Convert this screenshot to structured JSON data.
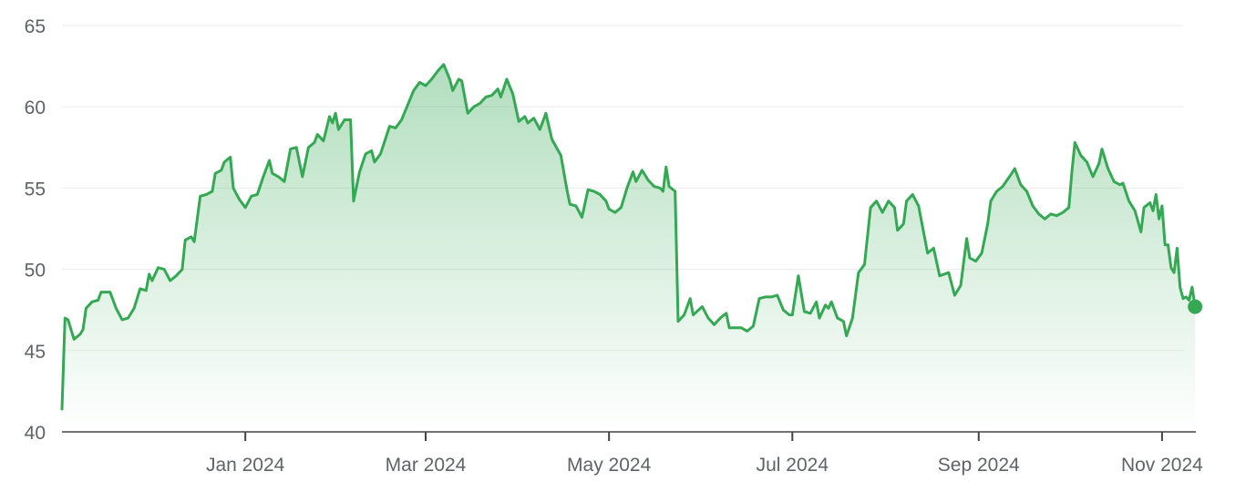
{
  "chart_data": {
    "type": "area",
    "title": "",
    "xlabel": "",
    "ylabel": "",
    "ylim": [
      40,
      65
    ],
    "xlim": [
      "2023-11-01",
      "2024-11-08"
    ],
    "y_ticks": [
      40,
      45,
      50,
      55,
      60,
      65
    ],
    "x_ticks": [
      {
        "label": "Jan 2024",
        "date": "2024-01-01"
      },
      {
        "label": "Mar 2024",
        "date": "2024-03-01"
      },
      {
        "label": "May 2024",
        "date": "2024-05-01"
      },
      {
        "label": "Jul 2024",
        "date": "2024-07-01"
      },
      {
        "label": "Sep 2024",
        "date": "2024-09-01"
      },
      {
        "label": "Nov 2024",
        "date": "2024-11-01"
      }
    ],
    "grid": true,
    "colors": {
      "line": "#34a853",
      "fill_top": "#34a853",
      "marker": "#34a853"
    },
    "series": [
      {
        "points": [
          [
            "2023-11-01",
            41.4
          ],
          [
            "2023-11-02",
            47.0
          ],
          [
            "2023-11-03",
            46.9
          ],
          [
            "2023-11-05",
            45.7
          ],
          [
            "2023-11-07",
            46.0
          ],
          [
            "2023-11-08",
            46.3
          ],
          [
            "2023-11-09",
            47.6
          ],
          [
            "2023-11-11",
            48.0
          ],
          [
            "2023-11-13",
            48.1
          ],
          [
            "2023-11-14",
            48.6
          ],
          [
            "2023-11-17",
            48.6
          ],
          [
            "2023-11-19",
            47.6
          ],
          [
            "2023-11-21",
            46.9
          ],
          [
            "2023-11-23",
            47.0
          ],
          [
            "2023-11-25",
            47.6
          ],
          [
            "2023-11-27",
            48.8
          ],
          [
            "2023-11-29",
            48.7
          ],
          [
            "2023-11-30",
            49.7
          ],
          [
            "2023-12-01",
            49.3
          ],
          [
            "2023-12-03",
            50.1
          ],
          [
            "2023-12-05",
            50.0
          ],
          [
            "2023-12-07",
            49.3
          ],
          [
            "2023-12-09",
            49.6
          ],
          [
            "2023-12-11",
            50.0
          ],
          [
            "2023-12-12",
            51.8
          ],
          [
            "2023-12-14",
            52.0
          ],
          [
            "2023-12-15",
            51.7
          ],
          [
            "2023-12-17",
            54.5
          ],
          [
            "2023-12-19",
            54.6
          ],
          [
            "2023-12-21",
            54.8
          ],
          [
            "2023-12-22",
            55.9
          ],
          [
            "2023-12-24",
            56.1
          ],
          [
            "2023-12-25",
            56.6
          ],
          [
            "2023-12-27",
            56.9
          ],
          [
            "2023-12-28",
            55.0
          ],
          [
            "2023-12-30",
            54.3
          ],
          [
            "2024-01-01",
            53.8
          ],
          [
            "2024-01-03",
            54.5
          ],
          [
            "2024-01-05",
            54.6
          ],
          [
            "2024-01-07",
            55.7
          ],
          [
            "2024-01-09",
            56.7
          ],
          [
            "2024-01-10",
            55.9
          ],
          [
            "2024-01-12",
            55.7
          ],
          [
            "2024-01-14",
            55.4
          ],
          [
            "2024-01-16",
            57.4
          ],
          [
            "2024-01-18",
            57.5
          ],
          [
            "2024-01-20",
            55.7
          ],
          [
            "2024-01-22",
            57.5
          ],
          [
            "2024-01-24",
            57.8
          ],
          [
            "2024-01-25",
            58.3
          ],
          [
            "2024-01-27",
            57.9
          ],
          [
            "2024-01-29",
            59.4
          ],
          [
            "2024-01-30",
            59.0
          ],
          [
            "2024-01-31",
            59.6
          ],
          [
            "2024-02-01",
            58.6
          ],
          [
            "2024-02-03",
            59.2
          ],
          [
            "2024-02-05",
            59.2
          ],
          [
            "2024-02-06",
            54.2
          ],
          [
            "2024-02-08",
            56.0
          ],
          [
            "2024-02-10",
            57.1
          ],
          [
            "2024-02-12",
            57.3
          ],
          [
            "2024-02-13",
            56.6
          ],
          [
            "2024-02-15",
            57.1
          ],
          [
            "2024-02-18",
            58.8
          ],
          [
            "2024-02-20",
            58.7
          ],
          [
            "2024-02-22",
            59.2
          ],
          [
            "2024-02-24",
            60.1
          ],
          [
            "2024-02-26",
            61.0
          ],
          [
            "2024-02-28",
            61.5
          ],
          [
            "2024-03-01",
            61.3
          ],
          [
            "2024-03-03",
            61.7
          ],
          [
            "2024-03-05",
            62.2
          ],
          [
            "2024-03-07",
            62.6
          ],
          [
            "2024-03-09",
            61.7
          ],
          [
            "2024-03-10",
            61.0
          ],
          [
            "2024-03-12",
            61.7
          ],
          [
            "2024-03-13",
            61.6
          ],
          [
            "2024-03-15",
            59.6
          ],
          [
            "2024-03-17",
            60.0
          ],
          [
            "2024-03-19",
            60.2
          ],
          [
            "2024-03-21",
            60.6
          ],
          [
            "2024-03-23",
            60.7
          ],
          [
            "2024-03-25",
            61.1
          ],
          [
            "2024-03-26",
            60.6
          ],
          [
            "2024-03-28",
            61.7
          ],
          [
            "2024-03-30",
            60.8
          ],
          [
            "2024-04-01",
            59.1
          ],
          [
            "2024-04-03",
            59.4
          ],
          [
            "2024-04-04",
            59.0
          ],
          [
            "2024-04-06",
            59.3
          ],
          [
            "2024-04-08",
            58.6
          ],
          [
            "2024-04-10",
            59.6
          ],
          [
            "2024-04-12",
            58.0
          ],
          [
            "2024-04-15",
            57.0
          ],
          [
            "2024-04-17",
            54.9
          ],
          [
            "2024-04-18",
            54.0
          ],
          [
            "2024-04-20",
            53.9
          ],
          [
            "2024-04-22",
            53.2
          ],
          [
            "2024-04-24",
            54.9
          ],
          [
            "2024-04-26",
            54.8
          ],
          [
            "2024-04-28",
            54.6
          ],
          [
            "2024-04-30",
            54.2
          ],
          [
            "2024-05-01",
            53.7
          ],
          [
            "2024-05-03",
            53.5
          ],
          [
            "2024-05-05",
            53.8
          ],
          [
            "2024-05-07",
            55.0
          ],
          [
            "2024-05-09",
            56.0
          ],
          [
            "2024-05-10",
            55.4
          ],
          [
            "2024-05-12",
            56.1
          ],
          [
            "2024-05-14",
            55.5
          ],
          [
            "2024-05-16",
            55.1
          ],
          [
            "2024-05-18",
            55.0
          ],
          [
            "2024-05-19",
            54.8
          ],
          [
            "2024-05-20",
            56.3
          ],
          [
            "2024-05-21",
            55.1
          ],
          [
            "2024-05-23",
            54.8
          ],
          [
            "2024-05-24",
            46.8
          ],
          [
            "2024-05-26",
            47.2
          ],
          [
            "2024-05-28",
            48.2
          ],
          [
            "2024-05-29",
            47.2
          ],
          [
            "2024-06-01",
            47.7
          ],
          [
            "2024-06-03",
            47.0
          ],
          [
            "2024-06-05",
            46.6
          ],
          [
            "2024-06-07",
            47.0
          ],
          [
            "2024-06-09",
            47.3
          ],
          [
            "2024-06-10",
            46.4
          ],
          [
            "2024-06-12",
            46.4
          ],
          [
            "2024-06-14",
            46.4
          ],
          [
            "2024-06-16",
            46.2
          ],
          [
            "2024-06-18",
            46.5
          ],
          [
            "2024-06-20",
            48.2
          ],
          [
            "2024-06-22",
            48.3
          ],
          [
            "2024-06-24",
            48.3
          ],
          [
            "2024-06-26",
            48.4
          ],
          [
            "2024-06-28",
            47.5
          ],
          [
            "2024-06-30",
            47.2
          ],
          [
            "2024-07-01",
            47.2
          ],
          [
            "2024-07-03",
            49.6
          ],
          [
            "2024-07-05",
            47.4
          ],
          [
            "2024-07-07",
            47.3
          ],
          [
            "2024-07-09",
            48.0
          ],
          [
            "2024-07-10",
            47.0
          ],
          [
            "2024-07-12",
            47.8
          ],
          [
            "2024-07-13",
            47.6
          ],
          [
            "2024-07-14",
            48.0
          ],
          [
            "2024-07-16",
            47.0
          ],
          [
            "2024-07-18",
            46.8
          ],
          [
            "2024-07-19",
            45.9
          ],
          [
            "2024-07-21",
            47.0
          ],
          [
            "2024-07-23",
            49.8
          ],
          [
            "2024-07-25",
            50.3
          ],
          [
            "2024-07-27",
            53.8
          ],
          [
            "2024-07-29",
            54.2
          ],
          [
            "2024-07-31",
            53.5
          ],
          [
            "2024-08-02",
            54.2
          ],
          [
            "2024-08-04",
            53.8
          ],
          [
            "2024-08-05",
            52.4
          ],
          [
            "2024-08-07",
            52.8
          ],
          [
            "2024-08-08",
            54.2
          ],
          [
            "2024-08-10",
            54.6
          ],
          [
            "2024-08-12",
            53.9
          ],
          [
            "2024-08-15",
            51.0
          ],
          [
            "2024-08-17",
            51.3
          ],
          [
            "2024-08-19",
            49.6
          ],
          [
            "2024-08-22",
            49.8
          ],
          [
            "2024-08-24",
            48.4
          ],
          [
            "2024-08-26",
            49.0
          ],
          [
            "2024-08-28",
            51.9
          ],
          [
            "2024-08-29",
            50.7
          ],
          [
            "2024-08-31",
            50.5
          ],
          [
            "2024-09-02",
            51.0
          ],
          [
            "2024-09-04",
            52.8
          ],
          [
            "2024-09-05",
            54.2
          ],
          [
            "2024-09-07",
            54.8
          ],
          [
            "2024-09-09",
            55.1
          ],
          [
            "2024-09-12",
            55.9
          ],
          [
            "2024-09-13",
            56.2
          ],
          [
            "2024-09-15",
            55.2
          ],
          [
            "2024-09-17",
            54.8
          ],
          [
            "2024-09-19",
            53.9
          ],
          [
            "2024-09-21",
            53.4
          ],
          [
            "2024-09-23",
            53.1
          ],
          [
            "2024-09-25",
            53.4
          ],
          [
            "2024-09-27",
            53.3
          ],
          [
            "2024-09-29",
            53.5
          ],
          [
            "2024-10-01",
            53.8
          ],
          [
            "2024-10-02",
            56.0
          ],
          [
            "2024-10-03",
            57.8
          ],
          [
            "2024-10-05",
            57.0
          ],
          [
            "2024-10-07",
            56.6
          ],
          [
            "2024-10-09",
            55.7
          ],
          [
            "2024-10-11",
            56.5
          ],
          [
            "2024-10-12",
            57.4
          ],
          [
            "2024-10-14",
            56.2
          ],
          [
            "2024-10-16",
            55.4
          ],
          [
            "2024-10-18",
            55.2
          ],
          [
            "2024-10-19",
            55.3
          ],
          [
            "2024-10-21",
            54.2
          ],
          [
            "2024-10-23",
            53.6
          ],
          [
            "2024-10-25",
            52.3
          ],
          [
            "2024-10-26",
            53.8
          ],
          [
            "2024-10-28",
            54.1
          ],
          [
            "2024-10-29",
            53.6
          ],
          [
            "2024-10-30",
            54.6
          ],
          [
            "2024-10-31",
            53.1
          ],
          [
            "2024-11-01",
            53.9
          ],
          [
            "2024-11-02",
            51.5
          ],
          [
            "2024-11-03",
            51.5
          ],
          [
            "2024-11-04",
            50.1
          ],
          [
            "2024-11-05",
            49.8
          ],
          [
            "2024-11-06",
            51.3
          ],
          [
            "2024-11-07",
            48.9
          ],
          [
            "2024-11-08",
            48.2
          ],
          [
            "2024-11-09",
            48.3
          ],
          [
            "2024-11-10",
            48.1
          ],
          [
            "2024-11-11",
            48.9
          ],
          [
            "2024-11-12",
            47.7
          ]
        ]
      }
    ]
  }
}
